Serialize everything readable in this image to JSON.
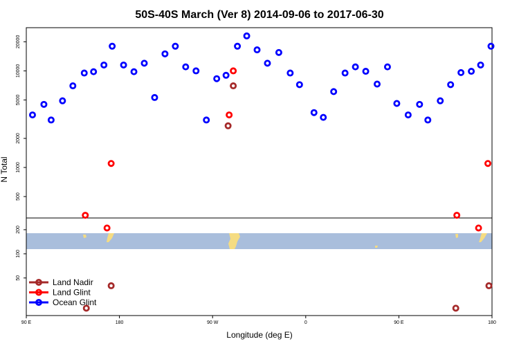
{
  "chart_data": {
    "type": "scatter",
    "title": "50S-40S March (Ver 8)   2014-09-06 to 2017-06-30",
    "xlabel": "Longitude (deg E)",
    "ylabel": "N Total",
    "xlim": [
      90,
      540
    ],
    "x_ticks": [
      {
        "value": 90,
        "label": "90 E"
      },
      {
        "value": 180,
        "label": "180"
      },
      {
        "value": 270,
        "label": "90 W"
      },
      {
        "value": 360,
        "label": "0"
      },
      {
        "value": 450,
        "label": "90 E"
      },
      {
        "value": 540,
        "label": "180"
      }
    ],
    "upper_panel": {
      "scale": "log",
      "ylim": [
        300,
        28000
      ],
      "y_ticks": [
        500,
        1000,
        2000,
        5000,
        10000,
        20000
      ]
    },
    "lower_panel": {
      "scale": "log",
      "ylim": [
        17,
        280
      ],
      "y_ticks": [
        50,
        100,
        200
      ],
      "map_background": true
    },
    "legend": {
      "position": "bottom-left",
      "entries": [
        "Land Nadir",
        "Land Glint",
        "Ocean Glint"
      ]
    },
    "colors": {
      "Land Nadir": "#a52a2a",
      "Land Glint": "#ff0000",
      "Ocean Glint": "#0000ff",
      "ocean": "#a9bedc",
      "land": "#f5dc82"
    },
    "series": [
      {
        "name": "Ocean Glint",
        "points": [
          [
            96,
            3500
          ],
          [
            107,
            4500
          ],
          [
            114,
            3100
          ],
          [
            125,
            4900
          ],
          [
            135,
            7000
          ],
          [
            146,
            9500
          ],
          [
            155,
            9800
          ],
          [
            165,
            11500
          ],
          [
            173,
            18000
          ],
          [
            184,
            11500
          ],
          [
            194,
            9800
          ],
          [
            204,
            12000
          ],
          [
            214,
            5300
          ],
          [
            224,
            15000
          ],
          [
            234,
            18000
          ],
          [
            244,
            11000
          ],
          [
            254,
            10000
          ],
          [
            264,
            3100
          ],
          [
            274,
            8300
          ],
          [
            283,
            9000
          ],
          [
            294,
            18000
          ],
          [
            303,
            23000
          ],
          [
            313,
            16500
          ],
          [
            323,
            12000
          ],
          [
            334,
            15500
          ],
          [
            345,
            9500
          ],
          [
            354,
            7200
          ],
          [
            368,
            3700
          ],
          [
            377,
            3300
          ],
          [
            387,
            6100
          ],
          [
            398,
            9500
          ],
          [
            408,
            11000
          ],
          [
            418,
            9900
          ],
          [
            429,
            7300
          ],
          [
            439,
            11000
          ],
          [
            448,
            4600
          ],
          [
            459,
            3500
          ],
          [
            470,
            4500
          ],
          [
            478,
            3100
          ],
          [
            490,
            4900
          ],
          [
            500,
            7200
          ],
          [
            510,
            9600
          ],
          [
            520,
            9900
          ],
          [
            529,
            11500
          ],
          [
            539,
            18000
          ]
        ]
      },
      {
        "name": "Land Glint",
        "points": [
          [
            147,
            320
          ],
          [
            172,
            1100
          ],
          [
            286,
            3500
          ],
          [
            290,
            10000
          ],
          [
            506,
            320
          ],
          [
            536,
            1100
          ],
          [
            168,
            210
          ],
          [
            527,
            210
          ]
        ]
      },
      {
        "name": "Land Nadir",
        "points": [
          [
            285,
            2700
          ],
          [
            290,
            7000
          ],
          [
            148,
            21
          ],
          [
            172,
            40
          ],
          [
            505,
            21
          ],
          [
            537,
            40
          ]
        ]
      }
    ]
  }
}
